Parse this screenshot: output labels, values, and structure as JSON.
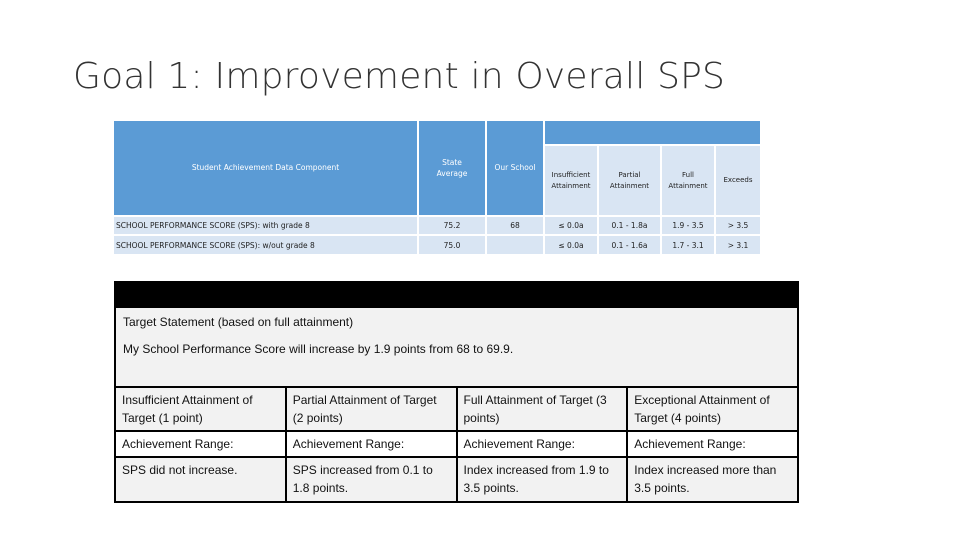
{
  "slide": {
    "title": "Goal 1:  Improvement in Overall SPS"
  },
  "sps_table": {
    "headers": {
      "component": "Student Achievement Data Component",
      "state_average": "State Average",
      "our_school": "Our School",
      "insufficient": "Insufficient Attainment",
      "partial": "Partial Attainment",
      "full": "Full Attainment",
      "exceeds": "Exceeds"
    },
    "rows": [
      {
        "component": "SCHOOL PERFORMANCE SCORE (SPS): with grade 8",
        "state_average": "75.2",
        "our_school": "68",
        "insufficient": "≤ 0.0a",
        "partial": "0.1 - 1.8a",
        "full": "1.9 - 3.5",
        "exceeds": "> 3.5"
      },
      {
        "component": "SCHOOL PERFORMANCE SCORE (SPS): w/out grade 8",
        "state_average": "75.0",
        "our_school": "",
        "insufficient": "≤ 0.0a",
        "partial": "0.1 - 1.6a",
        "full": "1.7 - 3.1",
        "exceeds": "> 3.1"
      }
    ]
  },
  "target": {
    "statement_label": "Target Statement (based on full attainment)",
    "statement_text": "My School Performance Score will increase by 1.9 points from 68 to 69.9.",
    "levels": [
      {
        "name": "Insufficient Attainment of Target (1 point)",
        "range_label": "Achievement Range:",
        "range": "SPS did not increase."
      },
      {
        "name": "Partial Attainment of Target (2 points)",
        "range_label": "Achievement Range:",
        "range": "SPS increased from 0.1 to 1.8 points."
      },
      {
        "name": "Full Attainment of Target (3 points)",
        "range_label": "Achievement Range:",
        "range": "Index increased from 1.9 to 3.5 points."
      },
      {
        "name": "Exceptional Attainment of Target (4 points)",
        "range_label": "Achievement Range:",
        "range": "Index increased more than 3.5 points."
      }
    ]
  },
  "colors": {
    "header_blue": "#5b9bd5",
    "subheader_light": "#d9e5f3",
    "statement_bg": "#f2f2f2",
    "bar_black": "#000000"
  }
}
